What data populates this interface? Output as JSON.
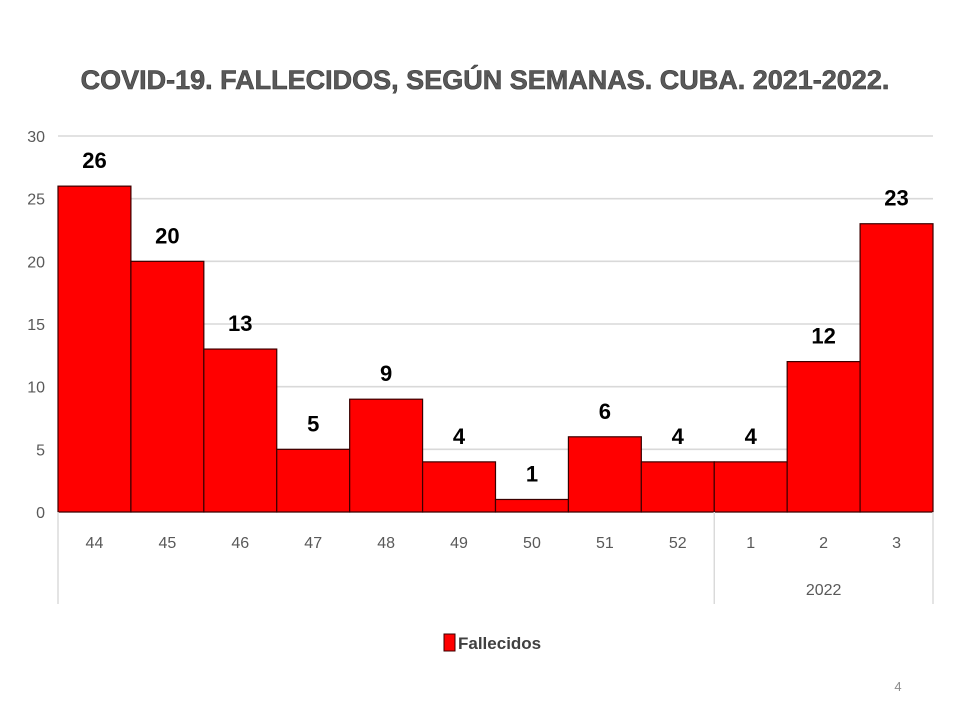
{
  "page_number": "4",
  "colors": {
    "bar_fill": "#ff0000",
    "bar_stroke": "#3a0000",
    "gridline": "#d9d9d9",
    "axis_text": "#595959"
  },
  "chart_data": {
    "type": "bar",
    "title": "COVID-19. FALLECIDOS, SEGÚN SEMANAS. CUBA. 2021-2022.",
    "xlabel": "",
    "ylabel": "",
    "categories": [
      "44",
      "45",
      "46",
      "47",
      "48",
      "49",
      "50",
      "51",
      "52",
      "1",
      "2",
      "3"
    ],
    "category_groups": [
      {
        "label": "",
        "count": 9
      },
      {
        "label": "2022",
        "count": 3
      }
    ],
    "series": [
      {
        "name": "Fallecidos",
        "color": "#ff0000",
        "values": [
          26,
          20,
          13,
          5,
          9,
          4,
          1,
          6,
          4,
          4,
          12,
          23
        ]
      }
    ],
    "ylim": [
      0,
      30
    ],
    "yticks": [
      0,
      5,
      10,
      15,
      20,
      25,
      30
    ],
    "grid": true,
    "legend_position": "bottom",
    "data_labels": true
  }
}
